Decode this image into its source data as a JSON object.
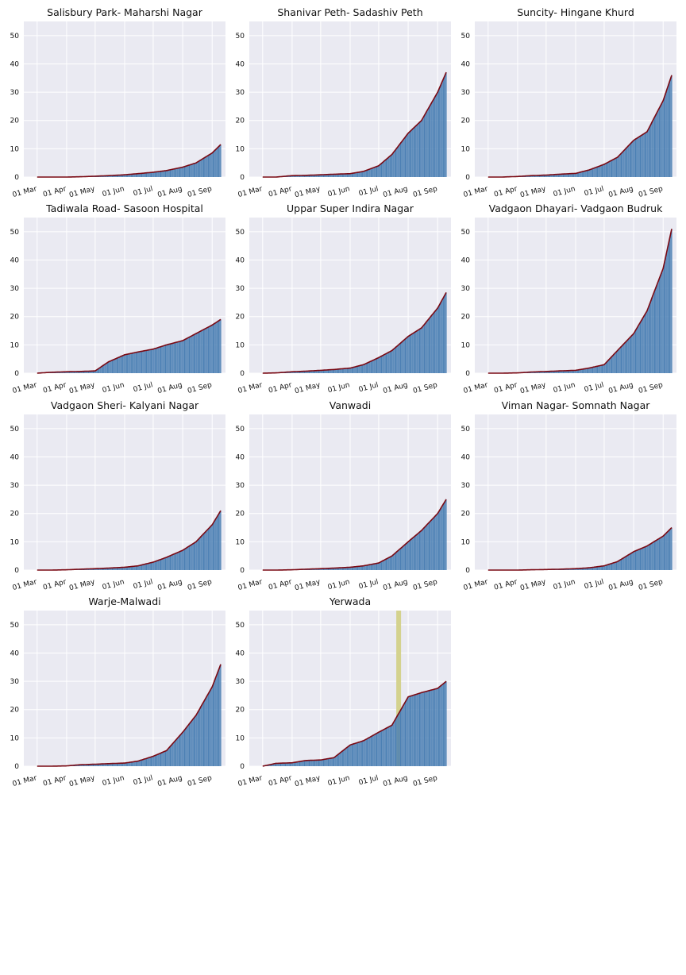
{
  "colors": {
    "plot_background": "#eaeaf2",
    "grid": "#ffffff",
    "bar": "#4c80b4",
    "bar_edge": "#3a5fb0",
    "line": "#7a0a14",
    "highlight": "#d4d28e",
    "text": "#111111"
  },
  "chart_data": [
    {
      "type": "bar",
      "title": "Salisbury Park- Maharshi Nagar",
      "x_tick_labels": [
        "01 Mar",
        "01 Apr",
        "01 May",
        "01 Jun",
        "01 Jul",
        "01 Aug",
        "01 Sep"
      ],
      "y_tick_labels": [
        "0",
        "10",
        "20",
        "30",
        "40",
        "50"
      ],
      "ylim": [
        0,
        55
      ],
      "grid": true,
      "series": [
        {
          "type": "bar+line",
          "x": [
            "2020-03-01",
            "2020-03-15",
            "2020-04-01",
            "2020-04-15",
            "2020-05-01",
            "2020-05-15",
            "2020-06-01",
            "2020-06-15",
            "2020-07-01",
            "2020-07-15",
            "2020-08-01",
            "2020-08-15",
            "2020-09-01",
            "2020-09-10"
          ],
          "y": [
            0,
            0,
            0,
            0.1,
            0.3,
            0.5,
            0.8,
            1.2,
            1.7,
            2.3,
            3.5,
            5.0,
            8.5,
            11.5
          ]
        }
      ]
    },
    {
      "type": "bar",
      "title": "Shanivar Peth- Sadashiv Peth",
      "x_tick_labels": [
        "01 Mar",
        "01 Apr",
        "01 May",
        "01 Jun",
        "01 Jul",
        "01 Aug",
        "01 Sep"
      ],
      "y_tick_labels": [
        "0",
        "10",
        "20",
        "30",
        "40",
        "50"
      ],
      "ylim": [
        0,
        55
      ],
      "grid": true,
      "series": [
        {
          "type": "bar+line",
          "x": [
            "2020-03-01",
            "2020-03-15",
            "2020-04-01",
            "2020-04-15",
            "2020-05-01",
            "2020-05-15",
            "2020-06-01",
            "2020-06-15",
            "2020-07-01",
            "2020-07-15",
            "2020-08-01",
            "2020-08-15",
            "2020-09-01",
            "2020-09-10"
          ],
          "y": [
            0,
            0,
            0.5,
            0.6,
            0.8,
            1.0,
            1.2,
            2.0,
            4.0,
            8.0,
            15.5,
            20.0,
            30.0,
            37.0
          ]
        }
      ]
    },
    {
      "type": "bar",
      "title": "Suncity- Hingane Khurd",
      "x_tick_labels": [
        "01 Mar",
        "01 Apr",
        "01 May",
        "01 Jun",
        "01 Jul",
        "01 Aug",
        "01 Sep"
      ],
      "y_tick_labels": [
        "0",
        "10",
        "20",
        "30",
        "40",
        "50"
      ],
      "ylim": [
        0,
        55
      ],
      "grid": true,
      "series": [
        {
          "type": "bar+line",
          "x": [
            "2020-03-01",
            "2020-03-15",
            "2020-04-01",
            "2020-04-15",
            "2020-05-01",
            "2020-05-15",
            "2020-06-01",
            "2020-06-15",
            "2020-07-01",
            "2020-07-15",
            "2020-08-01",
            "2020-08-15",
            "2020-09-01",
            "2020-09-10"
          ],
          "y": [
            0,
            0,
            0.2,
            0.5,
            0.7,
            1.0,
            1.3,
            2.5,
            4.5,
            7.0,
            13.0,
            16.0,
            27.0,
            36.0
          ]
        }
      ]
    },
    {
      "type": "bar",
      "title": "Tadiwala Road- Sasoon Hospital",
      "x_tick_labels": [
        "01 Mar",
        "01 Apr",
        "01 May",
        "01 Jun",
        "01 Jul",
        "01 Aug",
        "01 Sep"
      ],
      "y_tick_labels": [
        "0",
        "10",
        "20",
        "30",
        "40",
        "50"
      ],
      "ylim": [
        0,
        55
      ],
      "grid": true,
      "series": [
        {
          "type": "bar+line",
          "x": [
            "2020-03-01",
            "2020-03-15",
            "2020-04-01",
            "2020-04-15",
            "2020-05-01",
            "2020-05-15",
            "2020-06-01",
            "2020-06-15",
            "2020-07-01",
            "2020-07-15",
            "2020-08-01",
            "2020-08-15",
            "2020-09-01",
            "2020-09-10"
          ],
          "y": [
            0,
            0.3,
            0.5,
            0.6,
            0.8,
            4.0,
            6.5,
            7.5,
            8.5,
            10.0,
            11.5,
            14.0,
            17.0,
            19.0
          ]
        }
      ]
    },
    {
      "type": "bar",
      "title": "Uppar Super Indira Nagar",
      "x_tick_labels": [
        "01 Mar",
        "01 Apr",
        "01 May",
        "01 Jun",
        "01 Jul",
        "01 Aug",
        "01 Sep"
      ],
      "y_tick_labels": [
        "0",
        "10",
        "20",
        "30",
        "40",
        "50"
      ],
      "ylim": [
        0,
        55
      ],
      "grid": true,
      "series": [
        {
          "type": "bar+line",
          "x": [
            "2020-03-01",
            "2020-03-15",
            "2020-04-01",
            "2020-04-15",
            "2020-05-01",
            "2020-05-15",
            "2020-06-01",
            "2020-06-15",
            "2020-07-01",
            "2020-07-15",
            "2020-08-01",
            "2020-08-15",
            "2020-09-01",
            "2020-09-10"
          ],
          "y": [
            0,
            0.1,
            0.5,
            0.7,
            1.0,
            1.3,
            1.8,
            3.0,
            5.5,
            8.0,
            13.0,
            16.0,
            23.0,
            28.5
          ]
        }
      ]
    },
    {
      "type": "bar",
      "title": "Vadgaon Dhayari- Vadgaon Budruk",
      "x_tick_labels": [
        "01 Mar",
        "01 Apr",
        "01 May",
        "01 Jun",
        "01 Jul",
        "01 Aug",
        "01 Sep"
      ],
      "y_tick_labels": [
        "0",
        "10",
        "20",
        "30",
        "40",
        "50"
      ],
      "ylim": [
        0,
        55
      ],
      "grid": true,
      "series": [
        {
          "type": "bar+line",
          "x": [
            "2020-03-01",
            "2020-03-15",
            "2020-04-01",
            "2020-04-15",
            "2020-05-01",
            "2020-05-15",
            "2020-06-01",
            "2020-06-15",
            "2020-07-01",
            "2020-07-15",
            "2020-08-01",
            "2020-08-15",
            "2020-09-01",
            "2020-09-10"
          ],
          "y": [
            0,
            0,
            0.1,
            0.4,
            0.6,
            0.8,
            1.0,
            1.8,
            3.0,
            8.0,
            14.0,
            22.0,
            37.0,
            51.0
          ]
        }
      ]
    },
    {
      "type": "bar",
      "title": "Vadgaon Sheri- Kalyani Nagar",
      "x_tick_labels": [
        "01 Mar",
        "01 Apr",
        "01 May",
        "01 Jun",
        "01 Jul",
        "01 Aug",
        "01 Sep"
      ],
      "y_tick_labels": [
        "0",
        "10",
        "20",
        "30",
        "40",
        "50"
      ],
      "ylim": [
        0,
        55
      ],
      "grid": true,
      "series": [
        {
          "type": "bar+line",
          "x": [
            "2020-03-01",
            "2020-03-15",
            "2020-04-01",
            "2020-04-15",
            "2020-05-01",
            "2020-05-15",
            "2020-06-01",
            "2020-06-15",
            "2020-07-01",
            "2020-07-15",
            "2020-08-01",
            "2020-08-15",
            "2020-09-01",
            "2020-09-10"
          ],
          "y": [
            0,
            0,
            0.1,
            0.3,
            0.5,
            0.7,
            1.0,
            1.5,
            2.8,
            4.5,
            7.0,
            10.0,
            16.0,
            21.0
          ]
        }
      ]
    },
    {
      "type": "bar",
      "title": "Vanwadi",
      "x_tick_labels": [
        "01 Mar",
        "01 Apr",
        "01 May",
        "01 Jun",
        "01 Jul",
        "01 Aug",
        "01 Sep"
      ],
      "y_tick_labels": [
        "0",
        "10",
        "20",
        "30",
        "40",
        "50"
      ],
      "ylim": [
        0,
        55
      ],
      "grid": true,
      "series": [
        {
          "type": "bar+line",
          "x": [
            "2020-03-01",
            "2020-03-15",
            "2020-04-01",
            "2020-04-15",
            "2020-05-01",
            "2020-05-15",
            "2020-06-01",
            "2020-06-15",
            "2020-07-01",
            "2020-07-15",
            "2020-08-01",
            "2020-08-15",
            "2020-09-01",
            "2020-09-10"
          ],
          "y": [
            0,
            0,
            0.1,
            0.3,
            0.5,
            0.7,
            1.0,
            1.5,
            2.5,
            5.0,
            10.0,
            14.0,
            20.0,
            25.0
          ]
        }
      ]
    },
    {
      "type": "bar",
      "title": "Viman Nagar- Somnath Nagar",
      "x_tick_labels": [
        "01 Mar",
        "01 Apr",
        "01 May",
        "01 Jun",
        "01 Jul",
        "01 Aug",
        "01 Sep"
      ],
      "y_tick_labels": [
        "0",
        "10",
        "20",
        "30",
        "40",
        "50"
      ],
      "ylim": [
        0,
        55
      ],
      "grid": true,
      "series": [
        {
          "type": "bar+line",
          "x": [
            "2020-03-01",
            "2020-03-15",
            "2020-04-01",
            "2020-04-15",
            "2020-05-01",
            "2020-05-15",
            "2020-06-01",
            "2020-06-15",
            "2020-07-01",
            "2020-07-15",
            "2020-08-01",
            "2020-08-15",
            "2020-09-01",
            "2020-09-10"
          ],
          "y": [
            0,
            0,
            0,
            0.1,
            0.2,
            0.3,
            0.5,
            0.8,
            1.5,
            3.0,
            6.5,
            8.5,
            12.0,
            15.0
          ]
        }
      ]
    },
    {
      "type": "bar",
      "title": "Warje-Malwadi",
      "x_tick_labels": [
        "01 Mar",
        "01 Apr",
        "01 May",
        "01 Jun",
        "01 Jul",
        "01 Aug",
        "01 Sep"
      ],
      "y_tick_labels": [
        "0",
        "10",
        "20",
        "30",
        "40",
        "50"
      ],
      "ylim": [
        0,
        55
      ],
      "grid": true,
      "series": [
        {
          "type": "bar+line",
          "x": [
            "2020-03-01",
            "2020-03-15",
            "2020-04-01",
            "2020-04-15",
            "2020-05-01",
            "2020-05-15",
            "2020-06-01",
            "2020-06-15",
            "2020-07-01",
            "2020-07-15",
            "2020-08-01",
            "2020-08-15",
            "2020-09-01",
            "2020-09-10"
          ],
          "y": [
            0,
            0,
            0.1,
            0.5,
            0.7,
            0.9,
            1.1,
            1.8,
            3.5,
            5.5,
            12.0,
            18.0,
            28.0,
            36.0
          ]
        }
      ]
    },
    {
      "type": "bar",
      "title": "Yerwada",
      "x_tick_labels": [
        "01 Mar",
        "01 Apr",
        "01 May",
        "01 Jun",
        "01 Jul",
        "01 Aug",
        "01 Sep"
      ],
      "y_tick_labels": [
        "0",
        "10",
        "20",
        "30",
        "40",
        "50"
      ],
      "ylim": [
        0,
        55
      ],
      "grid": true,
      "highlight_x": "2020-07-22",
      "series": [
        {
          "type": "bar+line",
          "x": [
            "2020-03-01",
            "2020-03-15",
            "2020-04-01",
            "2020-04-15",
            "2020-05-01",
            "2020-05-15",
            "2020-06-01",
            "2020-06-15",
            "2020-07-01",
            "2020-07-15",
            "2020-08-01",
            "2020-08-15",
            "2020-09-01",
            "2020-09-10"
          ],
          "y": [
            0,
            1.0,
            1.2,
            2.0,
            2.2,
            3.0,
            7.5,
            9.0,
            12.0,
            14.5,
            24.5,
            26.0,
            27.5,
            30.0
          ]
        }
      ]
    }
  ]
}
